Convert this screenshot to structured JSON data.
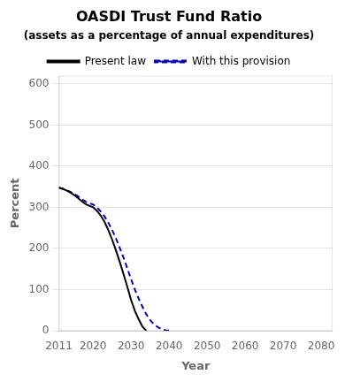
{
  "chart_data": {
    "type": "line",
    "title": "OASDI Trust Fund Ratio",
    "subtitle": "(assets as a percentage of annual expenditures)",
    "xlabel": "Year",
    "ylabel": "Percent",
    "x": [
      2011,
      2012,
      2013,
      2014,
      2015,
      2016,
      2017,
      2018,
      2019,
      2020,
      2021,
      2022,
      2023,
      2024,
      2025,
      2026,
      2027,
      2028,
      2029,
      2030,
      2031,
      2032,
      2033,
      2034,
      2035,
      2036,
      2037,
      2038,
      2039,
      2040
    ],
    "series": [
      {
        "name": "Present law",
        "color": "#000000",
        "line_style": "solid",
        "values": [
          348,
          345,
          341,
          336,
          330,
          323,
          315,
          308,
          304,
          300,
          292,
          280,
          265,
          245,
          222,
          196,
          168,
          138,
          107,
          75,
          48,
          28,
          10,
          0,
          null,
          null,
          null,
          null,
          null,
          null
        ]
      },
      {
        "name": "With this provision",
        "color": "#0000cc",
        "line_style": "dashed",
        "values": [
          348,
          345,
          342,
          338,
          333,
          327,
          320,
          314,
          310,
          307,
          300,
          290,
          278,
          263,
          245,
          225,
          202,
          178,
          152,
          125,
          100,
          78,
          58,
          40,
          26,
          16,
          9,
          4,
          1,
          0
        ]
      }
    ],
    "xlim": [
      2011,
      2083
    ],
    "xticks": [
      2011,
      2020,
      2030,
      2040,
      2050,
      2060,
      2070,
      2080
    ],
    "ylim": [
      0,
      620
    ],
    "yticks": [
      0,
      100,
      200,
      300,
      400,
      500,
      600
    ],
    "grid": "y",
    "legend": "top"
  }
}
